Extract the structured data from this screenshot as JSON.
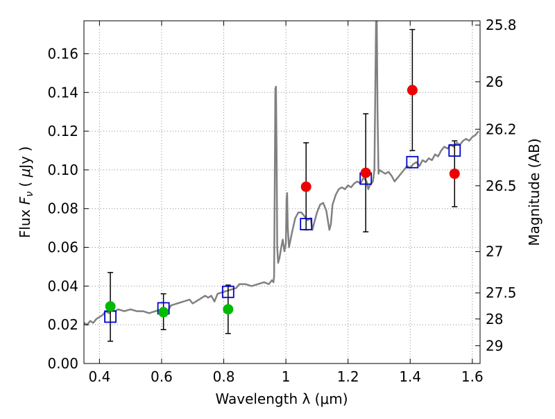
{
  "chart_data": {
    "type": "scatter",
    "xlabel": "Wavelength  λ (μm)",
    "ylabel": "Flux  F_ν  ( μJy )",
    "ylabel_right": "Magnitude (AB)",
    "xlim": [
      0.35,
      1.625
    ],
    "ylim": [
      0.0,
      0.177
    ],
    "grid": true,
    "x_ticks": [
      {
        "value": 0.4,
        "label": "0.4"
      },
      {
        "value": 0.6,
        "label": "0.6"
      },
      {
        "value": 0.8,
        "label": "0.8"
      },
      {
        "value": 1.0,
        "label": "1"
      },
      {
        "value": 1.2,
        "label": "1.2"
      },
      {
        "value": 1.4,
        "label": "1.4"
      },
      {
        "value": 1.6,
        "label": "1.6"
      }
    ],
    "y_ticks": [
      {
        "value": 0.0,
        "label": "0.00"
      },
      {
        "value": 0.02,
        "label": "0.02"
      },
      {
        "value": 0.04,
        "label": "0.04"
      },
      {
        "value": 0.06,
        "label": "0.06"
      },
      {
        "value": 0.08,
        "label": "0.08"
      },
      {
        "value": 0.1,
        "label": "0.10"
      },
      {
        "value": 0.12,
        "label": "0.12"
      },
      {
        "value": 0.14,
        "label": "0.14"
      },
      {
        "value": 0.16,
        "label": "0.16"
      }
    ],
    "right_ticks": [
      {
        "label": "25.8",
        "flux": 0.1748
      },
      {
        "label": "26",
        "flux": 0.1455
      },
      {
        "label": "26.2",
        "flux": 0.121
      },
      {
        "label": "26.5",
        "flux": 0.0918
      },
      {
        "label": "27",
        "flux": 0.0578
      },
      {
        "label": "27.5",
        "flux": 0.0365
      },
      {
        "label": "28",
        "flux": 0.023
      },
      {
        "label": "29",
        "flux": 0.0092
      }
    ],
    "colors": {
      "spectrum": "#808080",
      "green": "#00bb00",
      "red": "#ee0000",
      "model_square": "#0000cc",
      "errorbar": "#000000",
      "grid": "#888888"
    },
    "spectrum": [
      [
        0.35,
        0.021
      ],
      [
        0.36,
        0.02
      ],
      [
        0.37,
        0.022
      ],
      [
        0.38,
        0.021
      ],
      [
        0.39,
        0.023
      ],
      [
        0.4,
        0.024
      ],
      [
        0.41,
        0.025
      ],
      [
        0.42,
        0.027
      ],
      [
        0.43,
        0.026
      ],
      [
        0.44,
        0.028
      ],
      [
        0.45,
        0.027
      ],
      [
        0.46,
        0.028
      ],
      [
        0.48,
        0.027
      ],
      [
        0.5,
        0.028
      ],
      [
        0.52,
        0.027
      ],
      [
        0.54,
        0.027
      ],
      [
        0.56,
        0.026
      ],
      [
        0.58,
        0.027
      ],
      [
        0.6,
        0.028
      ],
      [
        0.62,
        0.027
      ],
      [
        0.63,
        0.03
      ],
      [
        0.65,
        0.031
      ],
      [
        0.67,
        0.032
      ],
      [
        0.69,
        0.033
      ],
      [
        0.7,
        0.031
      ],
      [
        0.72,
        0.033
      ],
      [
        0.74,
        0.035
      ],
      [
        0.75,
        0.034
      ],
      [
        0.76,
        0.035
      ],
      [
        0.77,
        0.032
      ],
      [
        0.78,
        0.036
      ],
      [
        0.8,
        0.037
      ],
      [
        0.82,
        0.038
      ],
      [
        0.84,
        0.039
      ],
      [
        0.85,
        0.041
      ],
      [
        0.87,
        0.041
      ],
      [
        0.89,
        0.04
      ],
      [
        0.91,
        0.041
      ],
      [
        0.93,
        0.042
      ],
      [
        0.945,
        0.041
      ],
      [
        0.955,
        0.043
      ],
      [
        0.96,
        0.042
      ],
      [
        0.962,
        0.045
      ],
      [
        0.964,
        0.09
      ],
      [
        0.966,
        0.142
      ],
      [
        0.968,
        0.143
      ],
      [
        0.97,
        0.11
      ],
      [
        0.972,
        0.06
      ],
      [
        0.975,
        0.052
      ],
      [
        0.98,
        0.055
      ],
      [
        0.985,
        0.06
      ],
      [
        0.99,
        0.064
      ],
      [
        0.995,
        0.058
      ],
      [
        1.0,
        0.062
      ],
      [
        1.002,
        0.084
      ],
      [
        1.004,
        0.088
      ],
      [
        1.006,
        0.07
      ],
      [
        1.01,
        0.06
      ],
      [
        1.015,
        0.064
      ],
      [
        1.02,
        0.068
      ],
      [
        1.03,
        0.075
      ],
      [
        1.04,
        0.078
      ],
      [
        1.05,
        0.078
      ],
      [
        1.06,
        0.076
      ],
      [
        1.07,
        0.074
      ],
      [
        1.08,
        0.075
      ],
      [
        1.085,
        0.069
      ],
      [
        1.09,
        0.072
      ],
      [
        1.1,
        0.078
      ],
      [
        1.11,
        0.082
      ],
      [
        1.12,
        0.083
      ],
      [
        1.13,
        0.079
      ],
      [
        1.14,
        0.069
      ],
      [
        1.145,
        0.072
      ],
      [
        1.15,
        0.082
      ],
      [
        1.16,
        0.087
      ],
      [
        1.17,
        0.09
      ],
      [
        1.18,
        0.091
      ],
      [
        1.19,
        0.09
      ],
      [
        1.2,
        0.092
      ],
      [
        1.21,
        0.091
      ],
      [
        1.22,
        0.093
      ],
      [
        1.23,
        0.094
      ],
      [
        1.24,
        0.093
      ],
      [
        1.25,
        0.096
      ],
      [
        1.26,
        0.094
      ],
      [
        1.265,
        0.09
      ],
      [
        1.27,
        0.092
      ],
      [
        1.28,
        0.094
      ],
      [
        1.285,
        0.1
      ],
      [
        1.29,
        0.175
      ],
      [
        1.292,
        0.185
      ],
      [
        1.295,
        0.13
      ],
      [
        1.298,
        0.098
      ],
      [
        1.3,
        0.1
      ],
      [
        1.31,
        0.099
      ],
      [
        1.32,
        0.098
      ],
      [
        1.33,
        0.099
      ],
      [
        1.34,
        0.097
      ],
      [
        1.35,
        0.094
      ],
      [
        1.36,
        0.096
      ],
      [
        1.37,
        0.098
      ],
      [
        1.38,
        0.1
      ],
      [
        1.39,
        0.102
      ],
      [
        1.4,
        0.101
      ],
      [
        1.41,
        0.103
      ],
      [
        1.42,
        0.104
      ],
      [
        1.43,
        0.102
      ],
      [
        1.44,
        0.105
      ],
      [
        1.45,
        0.104
      ],
      [
        1.46,
        0.106
      ],
      [
        1.47,
        0.105
      ],
      [
        1.48,
        0.108
      ],
      [
        1.49,
        0.107
      ],
      [
        1.5,
        0.11
      ],
      [
        1.51,
        0.112
      ],
      [
        1.52,
        0.111
      ],
      [
        1.53,
        0.113
      ],
      [
        1.54,
        0.112
      ],
      [
        1.55,
        0.114
      ],
      [
        1.56,
        0.113
      ],
      [
        1.57,
        0.115
      ],
      [
        1.58,
        0.116
      ],
      [
        1.59,
        0.115
      ],
      [
        1.6,
        0.117
      ],
      [
        1.61,
        0.118
      ],
      [
        1.62,
        0.12
      ]
    ],
    "green_points": [
      {
        "x": 0.435,
        "y": 0.0295,
        "lo": 0.0115,
        "hi": 0.047
      },
      {
        "x": 0.606,
        "y": 0.0265,
        "lo": 0.0175,
        "hi": 0.036
      },
      {
        "x": 0.814,
        "y": 0.028,
        "lo": 0.0155,
        "hi": 0.0405
      }
    ],
    "red_points": [
      {
        "x": 1.065,
        "y": 0.0913,
        "lo": 0.069,
        "hi": 0.114
      },
      {
        "x": 1.257,
        "y": 0.0985,
        "lo": 0.068,
        "hi": 0.129
      },
      {
        "x": 1.407,
        "y": 0.1412,
        "lo": 0.11,
        "hi": 0.1725
      },
      {
        "x": 1.543,
        "y": 0.098,
        "lo": 0.081,
        "hi": 0.115
      }
    ],
    "model_squares": [
      {
        "x": 0.435,
        "y": 0.0242
      },
      {
        "x": 0.606,
        "y": 0.0285
      },
      {
        "x": 0.814,
        "y": 0.037
      },
      {
        "x": 1.065,
        "y": 0.072
      },
      {
        "x": 1.257,
        "y": 0.0955
      },
      {
        "x": 1.407,
        "y": 0.104
      },
      {
        "x": 1.543,
        "y": 0.11
      }
    ]
  }
}
